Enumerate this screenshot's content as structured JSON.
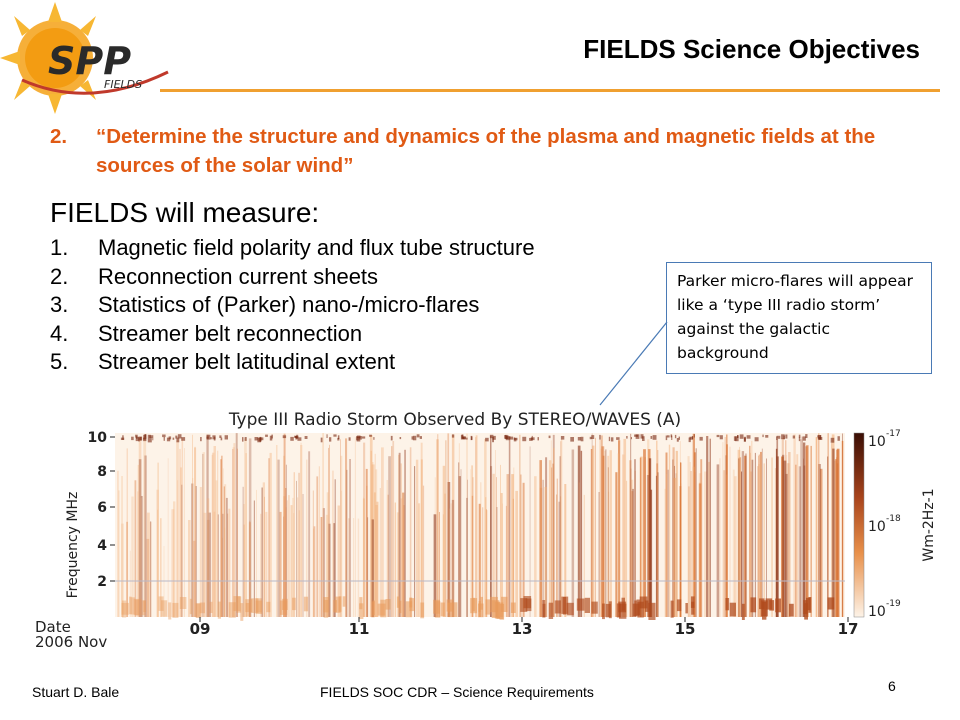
{
  "logo": {
    "text": "SPP",
    "subtext": "FIELDS"
  },
  "slide": {
    "title": "FIELDS Science Objectives",
    "objective_number": "2.",
    "objective_text": "“Determine the structure and dynamics of the plasma and magnetic fields at the sources of the solar wind”",
    "measure_heading": "FIELDS will measure:",
    "measure_items": [
      {
        "num": "1.",
        "text": "Magnetic field polarity and flux tube structure"
      },
      {
        "num": "2.",
        "text": "Reconnection current sheets"
      },
      {
        "num": "3.",
        "text": "Statistics of (Parker) nano-/micro-flares"
      },
      {
        "num": "4.",
        "text": "Streamer belt reconnection"
      },
      {
        "num": "5.",
        "text": "Streamer belt latitudinal extent"
      }
    ],
    "callout": "Parker micro-flares will appear like a ‘type III radio storm’ against the galactic background"
  },
  "figure": {
    "title": "Type III Radio Storm Observed By STEREO/WAVES (A)",
    "ylabel": "Frequency MHz",
    "yticks": [
      "10",
      "8",
      "6",
      "4",
      "2"
    ],
    "xlabel_line1": "Date",
    "xlabel_line2": "2006 Nov",
    "xticks": [
      "09",
      "11",
      "13",
      "15",
      "17"
    ],
    "colorbar_label": "Wm-2Hz-1",
    "colorbar_ticks": [
      {
        "base": "10",
        "exp": "-17"
      },
      {
        "base": "10",
        "exp": "-18"
      },
      {
        "base": "10",
        "exp": "-19"
      }
    ],
    "colors": {
      "low": "#fdf3e8",
      "mid": "#e8904a",
      "high": "#5a1a0a"
    }
  },
  "footer": {
    "author": "Stuart D. Bale",
    "center": "FIELDS SOC CDR – Science Requirements",
    "page": "6"
  }
}
